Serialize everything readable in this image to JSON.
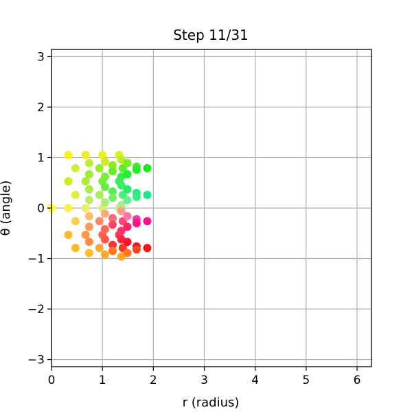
{
  "chart_data": {
    "type": "scatter",
    "title": "Step 11/31",
    "xlabel": "r (radius)",
    "ylabel": "θ (angle)",
    "xlim": [
      0,
      6.2832
    ],
    "ylim": [
      -3.1416,
      3.1416
    ],
    "xticks": [
      0,
      1,
      2,
      3,
      4,
      5,
      6
    ],
    "yticks": [
      -3,
      -2,
      -1,
      0,
      1,
      2,
      3
    ],
    "xtick_labels": [
      "0",
      "1",
      "2",
      "3",
      "4",
      "5",
      "6"
    ],
    "ytick_labels": [
      "−3",
      "−2",
      "−1",
      "0",
      "1",
      "2",
      "3"
    ],
    "grid": true,
    "legend": "none",
    "points": [
      {
        "x": 0.0,
        "y": 0.0,
        "color": "#ffff33"
      },
      {
        "x": 0.33,
        "y": 1.05,
        "color": "#ffee22"
      },
      {
        "x": 0.33,
        "y": 0.53,
        "color": "#ccee22"
      },
      {
        "x": 0.33,
        "y": 0.0,
        "color": "#ffee44"
      },
      {
        "x": 0.33,
        "y": -0.53,
        "color": "#ffbb33"
      },
      {
        "x": 0.47,
        "y": 0.79,
        "color": "#ccee33"
      },
      {
        "x": 0.47,
        "y": 0.26,
        "color": "#ddee44"
      },
      {
        "x": 0.47,
        "y": -0.26,
        "color": "#ffcc55"
      },
      {
        "x": 0.47,
        "y": -0.79,
        "color": "#ffbb22"
      },
      {
        "x": 0.67,
        "y": 1.05,
        "color": "#eeee22"
      },
      {
        "x": 0.67,
        "y": 0.53,
        "color": "#aaee33"
      },
      {
        "x": 0.67,
        "y": 0.0,
        "color": "#eeee66"
      },
      {
        "x": 0.67,
        "y": -0.53,
        "color": "#ff9944"
      },
      {
        "x": 0.74,
        "y": 0.89,
        "color": "#bbee33"
      },
      {
        "x": 0.74,
        "y": 0.67,
        "color": "#99ee33"
      },
      {
        "x": 0.74,
        "y": 0.37,
        "color": "#aaee44"
      },
      {
        "x": 0.74,
        "y": 0.16,
        "color": "#bbee66"
      },
      {
        "x": 0.74,
        "y": -0.16,
        "color": "#ffbb66"
      },
      {
        "x": 0.74,
        "y": -0.37,
        "color": "#ff9955"
      },
      {
        "x": 0.74,
        "y": -0.67,
        "color": "#ff8844"
      },
      {
        "x": 0.74,
        "y": -0.89,
        "color": "#ffbb22"
      },
      {
        "x": 0.94,
        "y": 0.79,
        "color": "#99ee22"
      },
      {
        "x": 0.94,
        "y": 0.26,
        "color": "#aaee55"
      },
      {
        "x": 0.94,
        "y": -0.26,
        "color": "#ff8866"
      },
      {
        "x": 0.94,
        "y": -0.79,
        "color": "#ffaa33"
      },
      {
        "x": 1.0,
        "y": 1.05,
        "color": "#eeee22"
      },
      {
        "x": 1.0,
        "y": 0.53,
        "color": "#77ee33"
      },
      {
        "x": 1.0,
        "y": 0.0,
        "color": "#ddee77"
      },
      {
        "x": 1.0,
        "y": -0.53,
        "color": "#ff6655"
      },
      {
        "x": 1.05,
        "y": 0.92,
        "color": "#ccee22"
      },
      {
        "x": 1.05,
        "y": 0.62,
        "color": "#77ee33"
      },
      {
        "x": 1.05,
        "y": 0.42,
        "color": "#66ee44"
      },
      {
        "x": 1.05,
        "y": 0.11,
        "color": "#aaee77"
      },
      {
        "x": 1.05,
        "y": -0.11,
        "color": "#ffaa77"
      },
      {
        "x": 1.05,
        "y": -0.42,
        "color": "#ff6655"
      },
      {
        "x": 1.05,
        "y": -0.62,
        "color": "#ff5544"
      },
      {
        "x": 1.05,
        "y": -0.92,
        "color": "#ffaa22"
      },
      {
        "x": 1.2,
        "y": 0.85,
        "color": "#88ee22"
      },
      {
        "x": 1.2,
        "y": 0.73,
        "color": "#66ee22"
      },
      {
        "x": 1.2,
        "y": 0.33,
        "color": "#55ee55"
      },
      {
        "x": 1.2,
        "y": 0.2,
        "color": "#77ee66"
      },
      {
        "x": 1.2,
        "y": -0.2,
        "color": "#ff6677"
      },
      {
        "x": 1.2,
        "y": -0.33,
        "color": "#ff4466"
      },
      {
        "x": 1.2,
        "y": -0.73,
        "color": "#ff3333"
      },
      {
        "x": 1.2,
        "y": -0.85,
        "color": "#ff7722"
      },
      {
        "x": 1.33,
        "y": 1.05,
        "color": "#ddee22"
      },
      {
        "x": 1.33,
        "y": 0.53,
        "color": "#33ee55"
      },
      {
        "x": 1.33,
        "y": 0.0,
        "color": "#ccee88"
      },
      {
        "x": 1.33,
        "y": -0.53,
        "color": "#ff3355"
      },
      {
        "x": 1.37,
        "y": 0.96,
        "color": "#bbee22"
      },
      {
        "x": 1.37,
        "y": 0.62,
        "color": "#33ee44"
      },
      {
        "x": 1.37,
        "y": 0.45,
        "color": "#33ee66"
      },
      {
        "x": 1.37,
        "y": 0.06,
        "color": "#aaee88"
      },
      {
        "x": 1.37,
        "y": -0.06,
        "color": "#ff9988"
      },
      {
        "x": 1.37,
        "y": -0.45,
        "color": "#ff3366"
      },
      {
        "x": 1.37,
        "y": -0.62,
        "color": "#ff2244"
      },
      {
        "x": 1.37,
        "y": -0.96,
        "color": "#ffaa22"
      },
      {
        "x": 1.4,
        "y": 0.79,
        "color": "#55ee22"
      },
      {
        "x": 1.4,
        "y": 0.26,
        "color": "#44ee77"
      },
      {
        "x": 1.4,
        "y": -0.26,
        "color": "#ff4477"
      },
      {
        "x": 1.4,
        "y": -0.79,
        "color": "#ff3322"
      },
      {
        "x": 1.49,
        "y": 0.89,
        "color": "#77ee22"
      },
      {
        "x": 1.49,
        "y": 0.67,
        "color": "#22ee33"
      },
      {
        "x": 1.49,
        "y": 0.37,
        "color": "#22ee66"
      },
      {
        "x": 1.49,
        "y": 0.16,
        "color": "#66ee99"
      },
      {
        "x": 1.49,
        "y": -0.16,
        "color": "#ff77aa"
      },
      {
        "x": 1.49,
        "y": -0.37,
        "color": "#ff2266"
      },
      {
        "x": 1.49,
        "y": -0.67,
        "color": "#ff1133"
      },
      {
        "x": 1.49,
        "y": -0.89,
        "color": "#ff7722"
      },
      {
        "x": 1.67,
        "y": 0.82,
        "color": "#44ee22"
      },
      {
        "x": 1.67,
        "y": 0.76,
        "color": "#22ee22"
      },
      {
        "x": 1.67,
        "y": 0.3,
        "color": "#22ee77"
      },
      {
        "x": 1.67,
        "y": 0.22,
        "color": "#33ee88"
      },
      {
        "x": 1.67,
        "y": -0.22,
        "color": "#ff33aa"
      },
      {
        "x": 1.67,
        "y": -0.3,
        "color": "#ff1188"
      },
      {
        "x": 1.67,
        "y": -0.76,
        "color": "#ff1122"
      },
      {
        "x": 1.67,
        "y": -0.82,
        "color": "#ff4422"
      },
      {
        "x": 1.88,
        "y": 0.79,
        "color": "#11ee11"
      },
      {
        "x": 1.88,
        "y": 0.26,
        "color": "#11ee88"
      },
      {
        "x": 1.88,
        "y": -0.26,
        "color": "#ff1188"
      },
      {
        "x": 1.88,
        "y": -0.79,
        "color": "#ff1111"
      }
    ]
  }
}
